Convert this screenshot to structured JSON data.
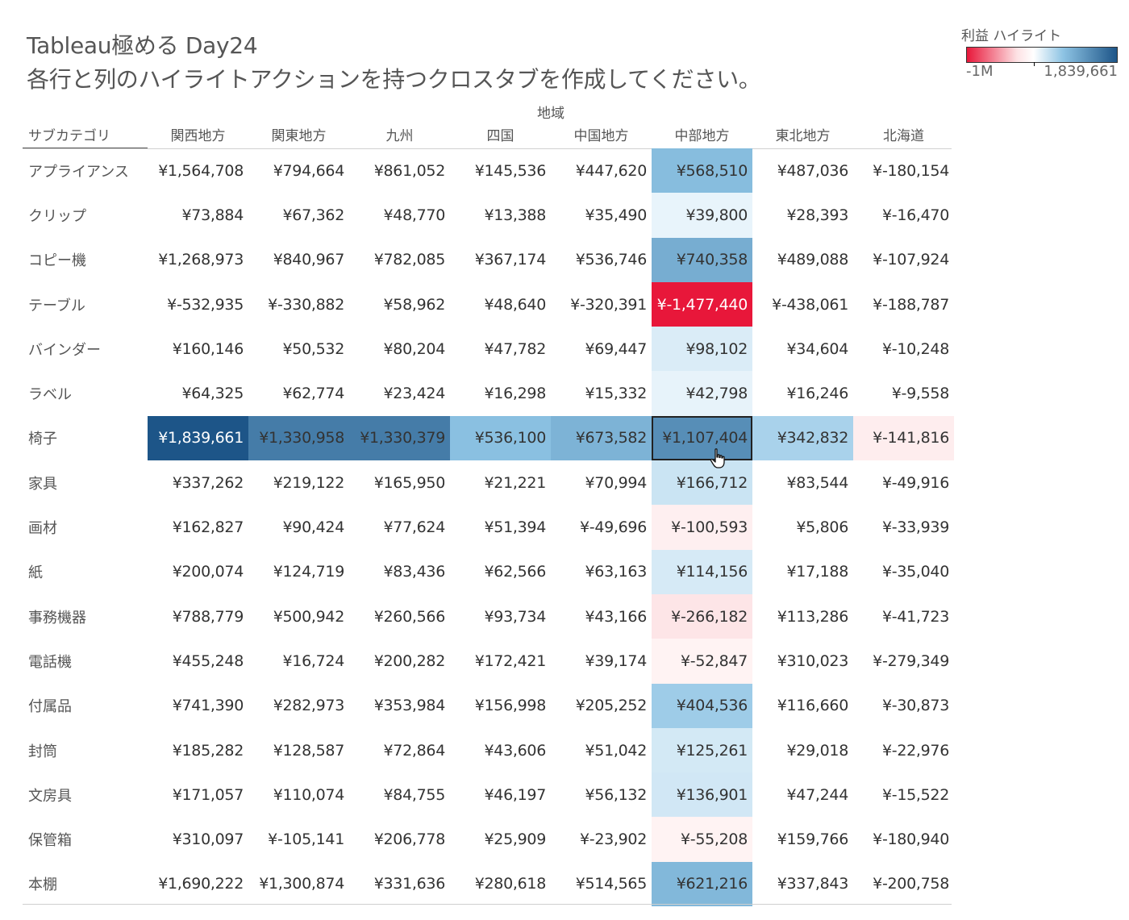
{
  "title": {
    "line1": "Tableau極める Day24",
    "line2": "各行と列のハイライトアクションを持つクロスタブを作成してください。"
  },
  "legend": {
    "title": "利益 ハイライト",
    "min_label": "-1M",
    "max_label": "1,839,661",
    "colors": {
      "negative": "#e8173a",
      "neutral": "#ffffff",
      "positive": "#1d5588"
    }
  },
  "chart_data": {
    "type": "heatmap",
    "x_axis_title": "地域",
    "row_header": "サブカテゴリ",
    "columns": [
      "関西地方",
      "関東地方",
      "九州",
      "四国",
      "中国地方",
      "中部地方",
      "東北地方",
      "北海道"
    ],
    "highlight": {
      "row": "椅子",
      "column": "中部地方"
    },
    "rows": [
      {
        "name": "アプライアンス",
        "values": [
          1564708,
          794664,
          861052,
          145536,
          447620,
          568510,
          487036,
          -180154
        ],
        "labels": [
          "¥1,564,708",
          "¥794,664",
          "¥861,052",
          "¥145,536",
          "¥447,620",
          "¥568,510",
          "¥487,036",
          "¥-180,154"
        ]
      },
      {
        "name": "クリップ",
        "values": [
          73884,
          67362,
          48770,
          13388,
          35490,
          39800,
          28393,
          -16470
        ],
        "labels": [
          "¥73,884",
          "¥67,362",
          "¥48,770",
          "¥13,388",
          "¥35,490",
          "¥39,800",
          "¥28,393",
          "¥-16,470"
        ]
      },
      {
        "name": "コピー機",
        "values": [
          1268973,
          840967,
          782085,
          367174,
          536746,
          740358,
          489088,
          -107924
        ],
        "labels": [
          "¥1,268,973",
          "¥840,967",
          "¥782,085",
          "¥367,174",
          "¥536,746",
          "¥740,358",
          "¥489,088",
          "¥-107,924"
        ]
      },
      {
        "name": "テーブル",
        "values": [
          -532935,
          -330882,
          58962,
          48640,
          -320391,
          -1477440,
          -438061,
          -188787
        ],
        "labels": [
          "¥-532,935",
          "¥-330,882",
          "¥58,962",
          "¥48,640",
          "¥-320,391",
          "¥-1,477,440",
          "¥-438,061",
          "¥-188,787"
        ]
      },
      {
        "name": "バインダー",
        "values": [
          160146,
          50532,
          80204,
          47782,
          69447,
          98102,
          34604,
          -10248
        ],
        "labels": [
          "¥160,146",
          "¥50,532",
          "¥80,204",
          "¥47,782",
          "¥69,447",
          "¥98,102",
          "¥34,604",
          "¥-10,248"
        ]
      },
      {
        "name": "ラベル",
        "values": [
          64325,
          62774,
          23424,
          16298,
          15332,
          42798,
          16246,
          -9558
        ],
        "labels": [
          "¥64,325",
          "¥62,774",
          "¥23,424",
          "¥16,298",
          "¥15,332",
          "¥42,798",
          "¥16,246",
          "¥-9,558"
        ]
      },
      {
        "name": "椅子",
        "values": [
          1839661,
          1330958,
          1330379,
          536100,
          673582,
          1107404,
          342832,
          -141816
        ],
        "labels": [
          "¥1,839,661",
          "¥1,330,958",
          "¥1,330,379",
          "¥536,100",
          "¥673,582",
          "¥1,107,404",
          "¥342,832",
          "¥-141,816"
        ]
      },
      {
        "name": "家具",
        "values": [
          337262,
          219122,
          165950,
          21221,
          70994,
          166712,
          83544,
          -49916
        ],
        "labels": [
          "¥337,262",
          "¥219,122",
          "¥165,950",
          "¥21,221",
          "¥70,994",
          "¥166,712",
          "¥83,544",
          "¥-49,916"
        ]
      },
      {
        "name": "画材",
        "values": [
          162827,
          90424,
          77624,
          51394,
          -49696,
          -100593,
          5806,
          -33939
        ],
        "labels": [
          "¥162,827",
          "¥90,424",
          "¥77,624",
          "¥51,394",
          "¥-49,696",
          "¥-100,593",
          "¥5,806",
          "¥-33,939"
        ]
      },
      {
        "name": "紙",
        "values": [
          200074,
          124719,
          83436,
          62566,
          63163,
          114156,
          17188,
          -35040
        ],
        "labels": [
          "¥200,074",
          "¥124,719",
          "¥83,436",
          "¥62,566",
          "¥63,163",
          "¥114,156",
          "¥17,188",
          "¥-35,040"
        ]
      },
      {
        "name": "事務機器",
        "values": [
          788779,
          500942,
          260566,
          93734,
          43166,
          -266182,
          113286,
          -41723
        ],
        "labels": [
          "¥788,779",
          "¥500,942",
          "¥260,566",
          "¥93,734",
          "¥43,166",
          "¥-266,182",
          "¥113,286",
          "¥-41,723"
        ]
      },
      {
        "name": "電話機",
        "values": [
          455248,
          16724,
          200282,
          172421,
          39174,
          -52847,
          310023,
          -279349
        ],
        "labels": [
          "¥455,248",
          "¥16,724",
          "¥200,282",
          "¥172,421",
          "¥39,174",
          "¥-52,847",
          "¥310,023",
          "¥-279,349"
        ]
      },
      {
        "name": "付属品",
        "values": [
          741390,
          282973,
          353984,
          156998,
          205252,
          404536,
          116660,
          -30873
        ],
        "labels": [
          "¥741,390",
          "¥282,973",
          "¥353,984",
          "¥156,998",
          "¥205,252",
          "¥404,536",
          "¥116,660",
          "¥-30,873"
        ]
      },
      {
        "name": "封筒",
        "values": [
          185282,
          128587,
          72864,
          43606,
          51042,
          125261,
          29018,
          -22976
        ],
        "labels": [
          "¥185,282",
          "¥128,587",
          "¥72,864",
          "¥43,606",
          "¥51,042",
          "¥125,261",
          "¥29,018",
          "¥-22,976"
        ]
      },
      {
        "name": "文房具",
        "values": [
          171057,
          110074,
          84755,
          46197,
          56132,
          136901,
          47244,
          -15522
        ],
        "labels": [
          "¥171,057",
          "¥110,074",
          "¥84,755",
          "¥46,197",
          "¥56,132",
          "¥136,901",
          "¥47,244",
          "¥-15,522"
        ]
      },
      {
        "name": "保管箱",
        "values": [
          310097,
          -105141,
          206778,
          25909,
          -23902,
          -55208,
          159766,
          -180940
        ],
        "labels": [
          "¥310,097",
          "¥-105,141",
          "¥206,778",
          "¥25,909",
          "¥-23,902",
          "¥-55,208",
          "¥159,766",
          "¥-180,940"
        ]
      },
      {
        "name": "本棚",
        "values": [
          1690222,
          1300874,
          331636,
          280618,
          514565,
          621216,
          337843,
          -200758
        ],
        "labels": [
          "¥1,690,222",
          "¥1,300,874",
          "¥331,636",
          "¥280,618",
          "¥514,565",
          "¥621,216",
          "¥337,843",
          "¥-200,758"
        ]
      }
    ]
  }
}
